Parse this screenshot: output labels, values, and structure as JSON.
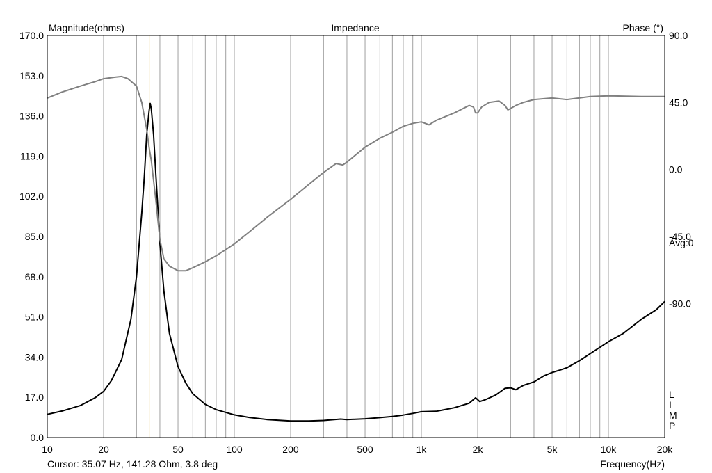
{
  "chart_data": {
    "type": "line",
    "title": "Impedance",
    "left_axis_title": "Magnitude(ohms)",
    "right_axis_title": "Phase (°)",
    "xlabel": "Frequency(Hz)",
    "x_scale": "log",
    "xlim": [
      10,
      20000
    ],
    "ylim_magnitude": [
      0,
      170
    ],
    "ylim_phase": [
      -180,
      90
    ],
    "grid": true,
    "x_ticks": [
      10,
      20,
      50,
      100,
      200,
      500,
      1000,
      2000,
      5000,
      10000,
      20000
    ],
    "x_tick_labels": [
      "10",
      "20",
      "50",
      "100",
      "200",
      "500",
      "1k",
      "2k",
      "5k",
      "10k",
      "20k"
    ],
    "left_tick_labels": [
      "170.0",
      "153.0",
      "136.0",
      "119.0",
      "102.0",
      "85.0",
      "68.0",
      "51.0",
      "34.0",
      "17.0",
      "0.0"
    ],
    "right_tick_labels": [
      "90.0",
      "45.0",
      "0.0",
      "-45.0",
      "-90.0"
    ],
    "right_annotation": "Avg:0",
    "limp_letters": [
      "L",
      "I",
      "M",
      "P"
    ],
    "cursor_text": "Cursor: 35.07 Hz, 141.28 Ohm, 3.8 deg",
    "cursor_freq": 35.07,
    "colors": {
      "magnitude": "#000000",
      "phase": "#808080",
      "grid": "#a0a0a0",
      "cursor": "#d4a000"
    },
    "series": [
      {
        "axis": "magnitude",
        "x": [
          10,
          12,
          15,
          18,
          20,
          22,
          25,
          28,
          30,
          32,
          33,
          34,
          35,
          35.5,
          36,
          37,
          38,
          40,
          42,
          45,
          50,
          55,
          60,
          70,
          80,
          100,
          120,
          150,
          200,
          250,
          300,
          370,
          400,
          500,
          600,
          700,
          800,
          900,
          1000,
          1200,
          1500,
          1800,
          1950,
          2050,
          2200,
          2500,
          2800,
          3000,
          3200,
          3500,
          4000,
          4500,
          5000,
          5500,
          6000,
          7000,
          8000,
          10000,
          12000,
          15000,
          18000,
          20000
        ],
        "y": [
          9.8,
          11.2,
          13.5,
          16.8,
          19.5,
          24,
          33,
          50,
          68,
          95,
          110,
          128,
          138,
          141.3,
          139,
          128,
          112,
          82,
          62,
          44,
          30,
          23,
          18.5,
          14,
          11.8,
          9.6,
          8.5,
          7.6,
          7.0,
          7.0,
          7.2,
          7.8,
          7.6,
          7.9,
          8.4,
          8.9,
          9.5,
          10.2,
          10.9,
          11.1,
          12.6,
          14.5,
          16.8,
          15.2,
          16.0,
          18.0,
          20.8,
          21.0,
          20.2,
          22.0,
          23.5,
          26,
          27.5,
          28.5,
          29.5,
          32.5,
          35.5,
          40.5,
          44,
          50,
          54,
          57.5
        ]
      },
      {
        "axis": "phase",
        "x": [
          10,
          12,
          15,
          18,
          20,
          23,
          25,
          27,
          30,
          32,
          34,
          35,
          36,
          38,
          40,
          42,
          45,
          50,
          55,
          60,
          70,
          80,
          100,
          120,
          150,
          200,
          250,
          300,
          350,
          380,
          400,
          500,
          600,
          700,
          800,
          900,
          1000,
          1100,
          1200,
          1500,
          1800,
          1900,
          1950,
          2000,
          2100,
          2300,
          2600,
          2800,
          2900,
          3000,
          3200,
          3500,
          4000,
          5000,
          6000,
          8000,
          10000,
          15000,
          20000
        ],
        "y": [
          48,
          52,
          56,
          59,
          61,
          62,
          62.5,
          61,
          56,
          45,
          27,
          15,
          6,
          -20,
          -47,
          -60,
          -65,
          -68,
          -68,
          -66,
          -62,
          -58,
          -50,
          -42,
          -32,
          -20,
          -10,
          -2,
          4,
          3,
          5,
          15,
          21,
          25,
          29,
          31,
          32,
          30,
          33,
          38,
          43,
          42,
          38,
          38,
          42,
          45,
          46,
          43,
          40,
          41,
          43,
          45,
          47,
          48,
          47,
          49,
          49.5,
          49,
          49
        ]
      }
    ]
  }
}
